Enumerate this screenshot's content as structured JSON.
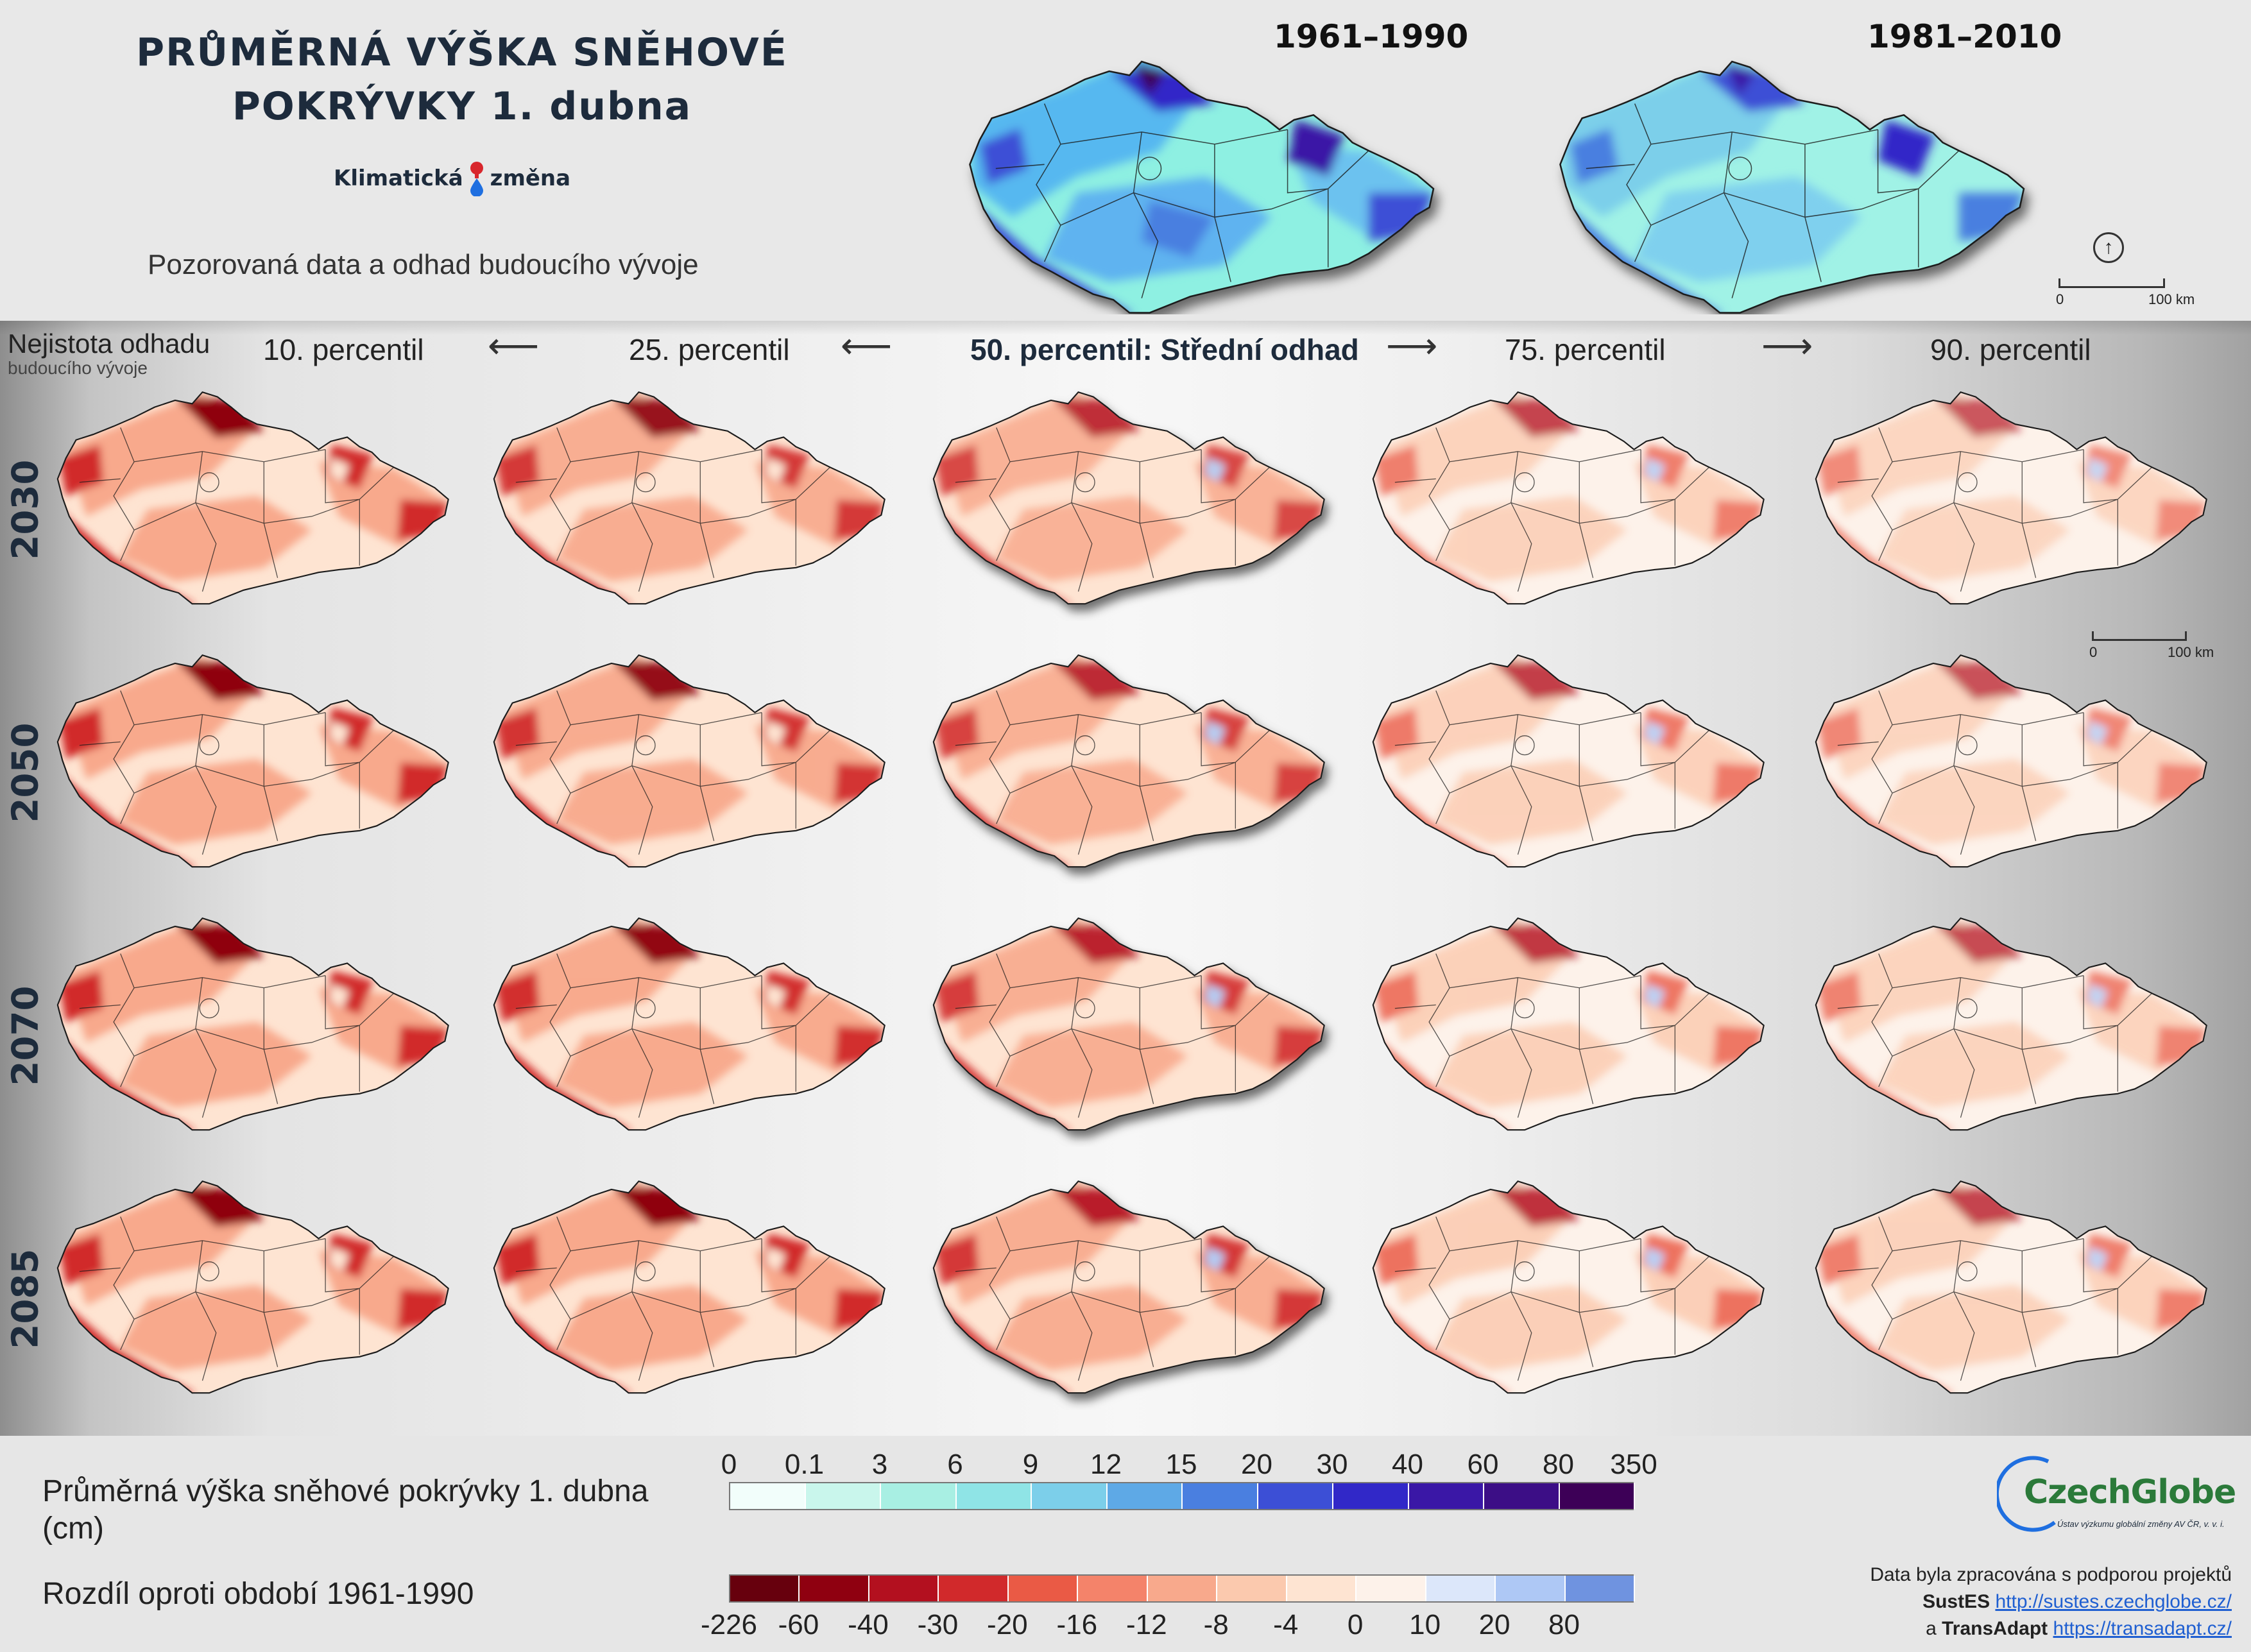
{
  "header": {
    "title_line1": "PRŮMĚRNÁ VÝŠKA SNĚHOVÉ",
    "title_line2": "POKRÝVKY 1. dubna",
    "brand_left": "Klimatická",
    "brand_right": "změna",
    "subtitle": "Pozorovaná data a odhad budoucího vývoje"
  },
  "observed_maps": [
    {
      "period": "1961–1990"
    },
    {
      "period": "1981–2010"
    }
  ],
  "scalebar": {
    "start": "0",
    "end": "100 km"
  },
  "uncertainty": {
    "line1": "Nejistota odhadu",
    "line2": "budoucího vývoje"
  },
  "columns": [
    {
      "label": "10. percentil"
    },
    {
      "label": "25. percentil"
    },
    {
      "label": "50. percentil: Střední odhad"
    },
    {
      "label": "75. percentil"
    },
    {
      "label": "90. percentil"
    }
  ],
  "rows": [
    {
      "year": "2030"
    },
    {
      "year": "2050"
    },
    {
      "year": "2070"
    },
    {
      "year": "2085"
    }
  ],
  "legend": {
    "depth_label": "Průměrná výška sněhové pokrývky 1. dubna (cm)",
    "depth_ticks": [
      "0",
      "0.1",
      "3",
      "6",
      "9",
      "12",
      "15",
      "20",
      "30",
      "40",
      "60",
      "80",
      "350"
    ],
    "depth_colors": [
      "#f2fefb",
      "#c9f6ec",
      "#a8efe3",
      "#8fe4e6",
      "#7ccfea",
      "#5ea9e6",
      "#4a7fe0",
      "#3c4fd6",
      "#3128c8",
      "#3a17a6",
      "#3c0e86",
      "#3d0057"
    ],
    "diff_label": "Rozdíl oproti období 1961-1990",
    "diff_ticks": [
      "-226",
      "-60",
      "-40",
      "-30",
      "-20",
      "-16",
      "-12",
      "-8",
      "-4",
      "0",
      "10",
      "20",
      "80"
    ],
    "diff_colors": [
      "#67000d",
      "#8f0010",
      "#b3101f",
      "#d1292b",
      "#ea5a45",
      "#f4836a",
      "#f8a98c",
      "#fbc9ae",
      "#fee4d2",
      "#fdf2ea",
      "#dce7fa",
      "#aec8f5",
      "#6f93e0"
    ]
  },
  "logo": {
    "name": "CzechGlobe",
    "tagline": "Ústav výzkumu globální změny AV ČR, v. v. i."
  },
  "source": {
    "line1": "Data byla zpracována s podporou projektů",
    "project1": "SustES",
    "link1": "http://sustes.czechglobe.cz/",
    "joiner": "a",
    "project2": "TransAdapt",
    "link2": "https://transadapt.cz/"
  }
}
